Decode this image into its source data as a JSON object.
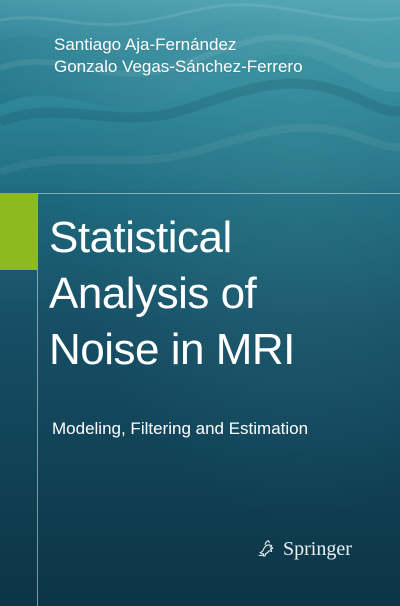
{
  "cover": {
    "authors": [
      "Santiago Aja-Fernández",
      "Gonzalo Vegas-Sánchez-Ferrero"
    ],
    "title_lines": [
      "Statistical",
      "Analysis of",
      "Noise in MRI"
    ],
    "subtitle": "Modeling, Filtering and Estimation",
    "publisher": "Springer",
    "publisher_logo_icon": "springer-horse-icon",
    "colors": {
      "background_top": "#2f8ea1",
      "background_bottom": "#0c3446",
      "accent_tab": "#8dbb1f",
      "text": "#ffffff"
    }
  }
}
